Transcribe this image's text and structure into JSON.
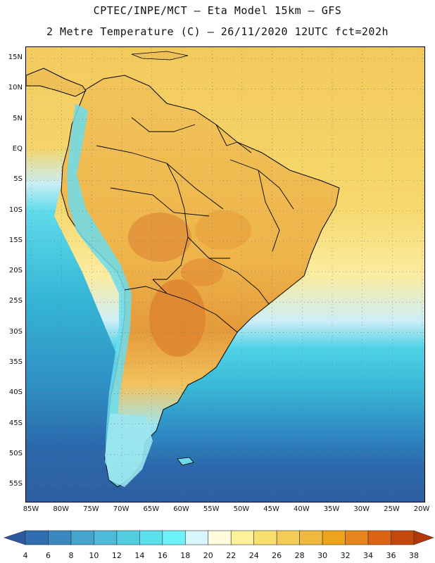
{
  "header": {
    "line1": "CPTEC/INPE/MCT –  Eta Model 15km – GFS",
    "line2": "2 Metre Temperature (C) – 26/11/2020 12UTC fct=202h"
  },
  "map": {
    "lat_labels": [
      "15N",
      "10N",
      "5N",
      "EQ",
      "5S",
      "10S",
      "15S",
      "20S",
      "25S",
      "30S",
      "35S",
      "40S",
      "45S",
      "50S",
      "55S"
    ],
    "lon_labels": [
      "85W",
      "80W",
      "75W",
      "70W",
      "65W",
      "60W",
      "55W",
      "50W",
      "45W",
      "40W",
      "35W",
      "30W",
      "25W",
      "20W"
    ],
    "grid": "dotted",
    "land_color": "#f2c45a",
    "ocean_colors": {
      "north_warm": "#f3c95d",
      "south_cool": "#28a8d4",
      "deep_south": "#2d63a6"
    }
  },
  "colorbar": {
    "labels": [
      "4",
      "6",
      "8",
      "10",
      "12",
      "14",
      "16",
      "18",
      "20",
      "22",
      "24",
      "26",
      "28",
      "30",
      "32",
      "34",
      "36",
      "38"
    ],
    "colors": [
      "#2b5aa0",
      "#2f6cb0",
      "#3a86c0",
      "#45a4cc",
      "#4cbad8",
      "#53cde0",
      "#5ce0ec",
      "#6cf2f6",
      "#d7f6fb",
      "#fffbdf",
      "#fdf29a",
      "#f9df6e",
      "#f4cc58",
      "#eeb93e",
      "#eda31c",
      "#e6851c",
      "#dc6312",
      "#c4480a",
      "#b23808"
    ]
  }
}
